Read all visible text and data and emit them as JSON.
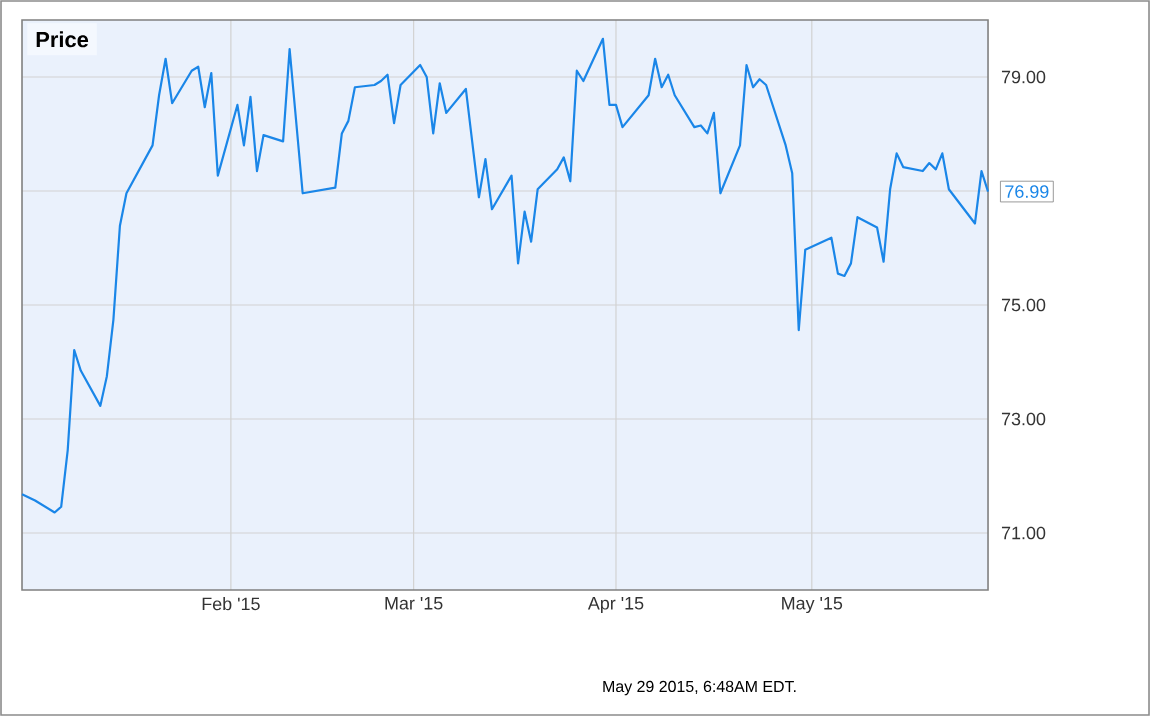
{
  "chart_data": {
    "type": "line",
    "title": "Price",
    "color": "#1a86e8",
    "grid": true,
    "marker": "none",
    "line_style": "solid",
    "xlim": [
      "2014-12-31",
      "2015-05-28"
    ],
    "ylim": [
      70,
      80
    ],
    "xticks": [
      {
        "value": "2015-02-01",
        "label": "Feb '15"
      },
      {
        "value": "2015-03-01",
        "label": "Mar '15"
      },
      {
        "value": "2015-04-01",
        "label": "Apr '15"
      },
      {
        "value": "2015-05-01",
        "label": "May '15"
      }
    ],
    "yticks": [
      {
        "value": 71,
        "label": "71.00"
      },
      {
        "value": 73,
        "label": "73.00"
      },
      {
        "value": 75,
        "label": "75.00"
      },
      {
        "value": 77,
        "label": null
      },
      {
        "value": 79,
        "label": "79.00"
      }
    ],
    "x": [
      "2014-12-31",
      "2015-01-02",
      "2015-01-05",
      "2015-01-06",
      "2015-01-07",
      "2015-01-08",
      "2015-01-09",
      "2015-01-12",
      "2015-01-13",
      "2015-01-14",
      "2015-01-15",
      "2015-01-16",
      "2015-01-20",
      "2015-01-21",
      "2015-01-22",
      "2015-01-23",
      "2015-01-26",
      "2015-01-27",
      "2015-01-28",
      "2015-01-29",
      "2015-01-30",
      "2015-02-02",
      "2015-02-03",
      "2015-02-04",
      "2015-02-05",
      "2015-02-06",
      "2015-02-09",
      "2015-02-10",
      "2015-02-12",
      "2015-02-17",
      "2015-02-18",
      "2015-02-19",
      "2015-02-20",
      "2015-02-23",
      "2015-02-24",
      "2015-02-25",
      "2015-02-26",
      "2015-02-27",
      "2015-03-02",
      "2015-03-03",
      "2015-03-04",
      "2015-03-05",
      "2015-03-06",
      "2015-03-09",
      "2015-03-11",
      "2015-03-12",
      "2015-03-13",
      "2015-03-16",
      "2015-03-17",
      "2015-03-18",
      "2015-03-19",
      "2015-03-20",
      "2015-03-23",
      "2015-03-24",
      "2015-03-25",
      "2015-03-26",
      "2015-03-27",
      "2015-03-30",
      "2015-03-31",
      "2015-04-01",
      "2015-04-02",
      "2015-04-06",
      "2015-04-07",
      "2015-04-08",
      "2015-04-09",
      "2015-04-10",
      "2015-04-13",
      "2015-04-14",
      "2015-04-15",
      "2015-04-16",
      "2015-04-17",
      "2015-04-20",
      "2015-04-21",
      "2015-04-22",
      "2015-04-23",
      "2015-04-24",
      "2015-04-27",
      "2015-04-28",
      "2015-04-29",
      "2015-04-30",
      "2015-05-04",
      "2015-05-05",
      "2015-05-06",
      "2015-05-07",
      "2015-05-08",
      "2015-05-11",
      "2015-05-12",
      "2015-05-13",
      "2015-05-14",
      "2015-05-15",
      "2015-05-18",
      "2015-05-19",
      "2015-05-20",
      "2015-05-21",
      "2015-05-22",
      "2015-05-26",
      "2015-05-27",
      "2015-05-28"
    ],
    "values": [
      71.68,
      71.57,
      71.36,
      71.46,
      72.45,
      74.21,
      73.85,
      73.23,
      73.75,
      74.74,
      76.39,
      76.96,
      77.8,
      78.68,
      79.32,
      78.54,
      79.11,
      79.18,
      78.47,
      79.07,
      77.27,
      78.51,
      77.8,
      78.65,
      77.35,
      77.98,
      77.87,
      79.49,
      76.96,
      77.06,
      78.01,
      78.23,
      78.82,
      78.86,
      78.93,
      79.04,
      78.19,
      78.86,
      79.21,
      79.0,
      78.01,
      78.89,
      78.37,
      78.79,
      76.89,
      77.56,
      76.68,
      77.27,
      75.73,
      76.64,
      76.11,
      77.03,
      77.38,
      77.59,
      77.17,
      79.11,
      78.93,
      79.67,
      78.51,
      78.51,
      78.12,
      78.68,
      79.32,
      78.82,
      79.04,
      78.68,
      78.12,
      78.15,
      78.01,
      78.37,
      76.96,
      77.8,
      79.21,
      78.82,
      78.96,
      78.86,
      77.8,
      77.31,
      74.56,
      75.97,
      76.18,
      75.55,
      75.51,
      75.73,
      76.54,
      76.36,
      75.76,
      77.03,
      77.66,
      77.42,
      77.35,
      77.49,
      77.38,
      77.66,
      77.03,
      76.43,
      77.35,
      76.99
    ],
    "annotations": [
      {
        "text": "76.99",
        "x": "2015-05-28",
        "y": 76.99
      },
      "May 29 2015, 6:48AM EDT."
    ]
  }
}
